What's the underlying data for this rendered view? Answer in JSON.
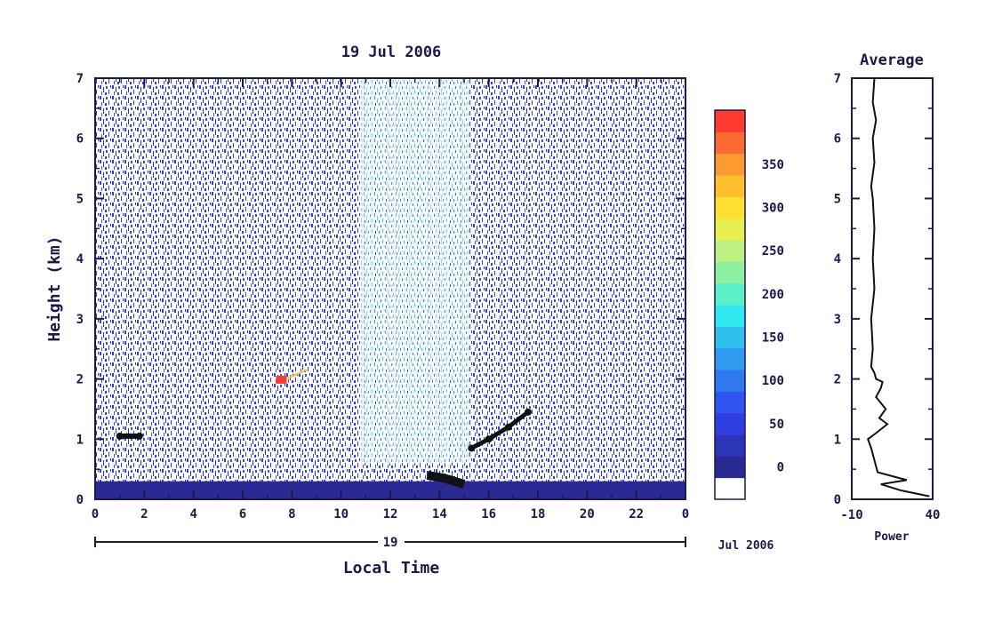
{
  "chart_data": [
    {
      "type": "heatmap",
      "title": "19 Jul 2006",
      "xlabel": "Local Time",
      "ylabel": "Height (km)",
      "x_ticks": [
        "0",
        "2",
        "4",
        "6",
        "8",
        "10",
        "12",
        "14",
        "16",
        "18",
        "20",
        "22",
        "0"
      ],
      "y_ticks": [
        "0",
        "1",
        "2",
        "3",
        "4",
        "5",
        "6",
        "7"
      ],
      "xlim": [
        0,
        24
      ],
      "ylim": [
        0,
        7
      ],
      "date_bar": {
        "day": "19",
        "month_year": "Jul 2006"
      },
      "colorbar": {
        "ticks": [
          "0",
          "50",
          "100",
          "150",
          "200",
          "250",
          "300",
          "350"
        ],
        "colors": [
          "#ffffff",
          "#2a2a94",
          "#2c35b8",
          "#2f3ee0",
          "#2e55f0",
          "#2e78f0",
          "#2f9bf0",
          "#30c0f0",
          "#30e8f0",
          "#5cf0c8",
          "#8cf0a0",
          "#bcf080",
          "#e8f050",
          "#ffe030",
          "#ffc030",
          "#ff9a30",
          "#ff6a30",
          "#ff3a30"
        ]
      },
      "features": {
        "ground_band_top_km": 0.3,
        "aerosol_layer": [
          {
            "x": 1.0,
            "y": 1.05
          },
          {
            "x": 1.8,
            "y": 1.05
          },
          {
            "x": 15.3,
            "y": 0.85
          },
          {
            "x": 16.0,
            "y": 1.0
          },
          {
            "x": 16.8,
            "y": 1.2
          },
          {
            "x": 17.6,
            "y": 1.45
          }
        ],
        "strong_echo": [
          {
            "x": 13.5,
            "y": 0.4
          },
          {
            "x": 14.2,
            "y": 0.35
          },
          {
            "x": 15.0,
            "y": 0.25
          }
        ],
        "red_patch": {
          "x": 7.5,
          "y": 1.98
        }
      }
    },
    {
      "type": "line",
      "title": "Average",
      "xlabel": "Power",
      "x_ticks": [
        "-10",
        "40"
      ],
      "y_ticks": [
        "0",
        "1",
        "2",
        "3",
        "4",
        "5",
        "6",
        "7"
      ],
      "xlim": [
        -10,
        40
      ],
      "ylim": [
        0,
        7
      ],
      "series": [
        {
          "values": [
            {
              "x": 38,
              "y": 0.05
            },
            {
              "x": 20,
              "y": 0.15
            },
            {
              "x": 8,
              "y": 0.25
            },
            {
              "x": 24,
              "y": 0.32
            },
            {
              "x": 6,
              "y": 0.45
            },
            {
              "x": 4,
              "y": 0.65
            },
            {
              "x": 2,
              "y": 0.85
            },
            {
              "x": 0,
              "y": 1.0
            },
            {
              "x": 5,
              "y": 1.1
            },
            {
              "x": 12,
              "y": 1.25
            },
            {
              "x": 7,
              "y": 1.35
            },
            {
              "x": 11,
              "y": 1.5
            },
            {
              "x": 5,
              "y": 1.7
            },
            {
              "x": 8,
              "y": 1.85
            },
            {
              "x": 9,
              "y": 1.95
            },
            {
              "x": 5,
              "y": 2.0
            },
            {
              "x": 4,
              "y": 2.1
            },
            {
              "x": 2,
              "y": 2.2
            },
            {
              "x": 3,
              "y": 2.5
            },
            {
              "x": 2,
              "y": 3.0
            },
            {
              "x": 4,
              "y": 3.5
            },
            {
              "x": 3,
              "y": 4.0
            },
            {
              "x": 4,
              "y": 4.5
            },
            {
              "x": 3,
              "y": 5.0
            },
            {
              "x": 2,
              "y": 5.2
            },
            {
              "x": 4,
              "y": 5.6
            },
            {
              "x": 3,
              "y": 6.0
            },
            {
              "x": 5,
              "y": 6.3
            },
            {
              "x": 3,
              "y": 6.6
            },
            {
              "x": 4,
              "y": 7.0
            }
          ]
        }
      ]
    }
  ]
}
